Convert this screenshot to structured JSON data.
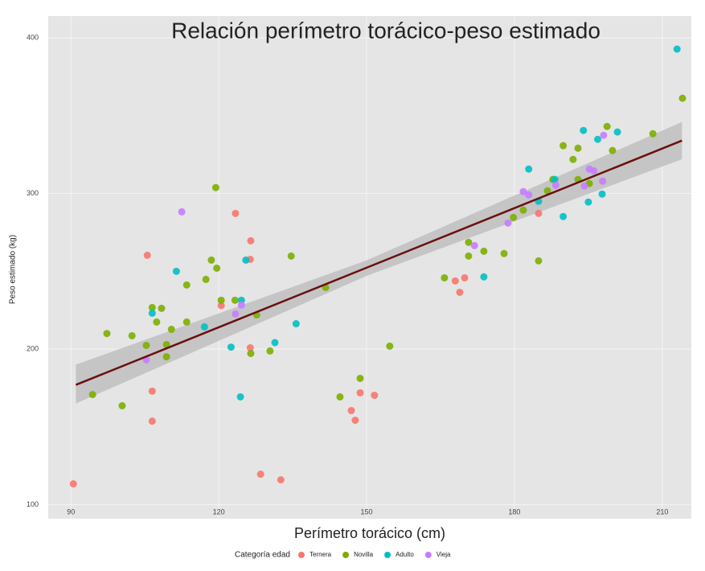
{
  "chart_data": {
    "type": "scatter",
    "title": "Relación perímetro torácico-peso estimado",
    "x_label": "Perímetro torácico (cm)",
    "y_label": "Peso estimado (kg)",
    "legend_title": "Categoría edad",
    "xlim": [
      85.4,
      215.9
    ],
    "ylim": [
      91,
      414
    ],
    "xticks": [
      90,
      120,
      150,
      180,
      210
    ],
    "yticks": [
      100,
      200,
      300,
      400
    ],
    "grid": true,
    "legend": "bottom",
    "series": [
      {
        "name": "Ternera",
        "color": "#f8766d",
        "x": [
          90.5,
          105.5,
          106.5,
          106.5,
          120.5,
          123.4,
          126.5,
          126.4,
          126.4,
          128.5,
          132.6,
          146.9,
          147.7,
          148.7,
          151.6,
          168.0,
          168.9,
          169.9,
          184.9
        ],
        "values": [
          113.4,
          260.3,
          173.0,
          153.7,
          228.0,
          287.2,
          269.6,
          257.7,
          200.8,
          119.6,
          116.0,
          160.5,
          154.3,
          171.9,
          170.3,
          243.8,
          236.5,
          245.8,
          287.2
        ]
      },
      {
        "name": "Novilla",
        "color": "#7cae00",
        "x": [
          94.4,
          97.3,
          100.4,
          102.4,
          105.3,
          106.5,
          107.4,
          108.4,
          109.4,
          109.4,
          110.4,
          113.5,
          113.5,
          117.4,
          118.5,
          119.4,
          119.6,
          120.5,
          123.3,
          126.5,
          127.7,
          130.4,
          134.7,
          141.7,
          144.6,
          148.7,
          154.7,
          165.8,
          170.7,
          170.7,
          173.8,
          177.9,
          179.8,
          181.8,
          184.9,
          186.7,
          187.8,
          189.9,
          191.9,
          192.9,
          192.9,
          195.2,
          198.8,
          199.9,
          208.1,
          214.1
        ],
        "values": [
          170.8,
          210.0,
          163.6,
          208.6,
          202.4,
          226.7,
          217.4,
          226.2,
          195.1,
          202.9,
          212.7,
          241.2,
          217.4,
          244.8,
          257.2,
          303.8,
          252.0,
          231.4,
          231.4,
          197.2,
          222.0,
          198.8,
          259.8,
          239.6,
          169.3,
          181.2,
          201.9,
          245.8,
          259.8,
          268.6,
          262.9,
          261.4,
          284.6,
          289.3,
          256.7,
          301.7,
          309.0,
          330.7,
          321.9,
          329.1,
          309.0,
          306.4,
          343.1,
          327.6,
          338.4,
          361.2
        ]
      },
      {
        "name": "Adulto",
        "color": "#00bfc4",
        "x": [
          106.5,
          111.4,
          117.1,
          122.5,
          124.4,
          124.6,
          125.5,
          131.4,
          135.7,
          173.8,
          182.9,
          184.9,
          188.2,
          189.9,
          194.0,
          195.0,
          196.9,
          197.8,
          200.9,
          213.0
        ],
        "values": [
          223.1,
          250.0,
          214.3,
          201.3,
          169.3,
          231.4,
          257.2,
          204.2,
          216.3,
          246.4,
          315.7,
          295.0,
          309.0,
          285.2,
          340.5,
          294.5,
          334.8,
          299.6,
          339.5,
          392.8
        ]
      },
      {
        "name": "Vieja",
        "color": "#c77cff",
        "x": [
          105.3,
          112.5,
          123.4,
          124.6,
          171.9,
          178.7,
          181.8,
          182.9,
          188.4,
          194.2,
          195.2,
          196.1,
          197.9,
          198.1
        ],
        "values": [
          193.1,
          288.2,
          222.6,
          228.3,
          266.5,
          281.0,
          301.2,
          299.1,
          305.3,
          304.8,
          315.7,
          314.6,
          307.9,
          337.4
        ]
      }
    ],
    "fit": {
      "color": "#6b0f0f",
      "band_color": "#bdbdbd",
      "x": [
        91,
        150,
        214
      ],
      "values": [
        177,
        252.3,
        334
      ],
      "lower": [
        165,
        247,
        322
      ],
      "upper": [
        190,
        257,
        346
      ]
    }
  }
}
